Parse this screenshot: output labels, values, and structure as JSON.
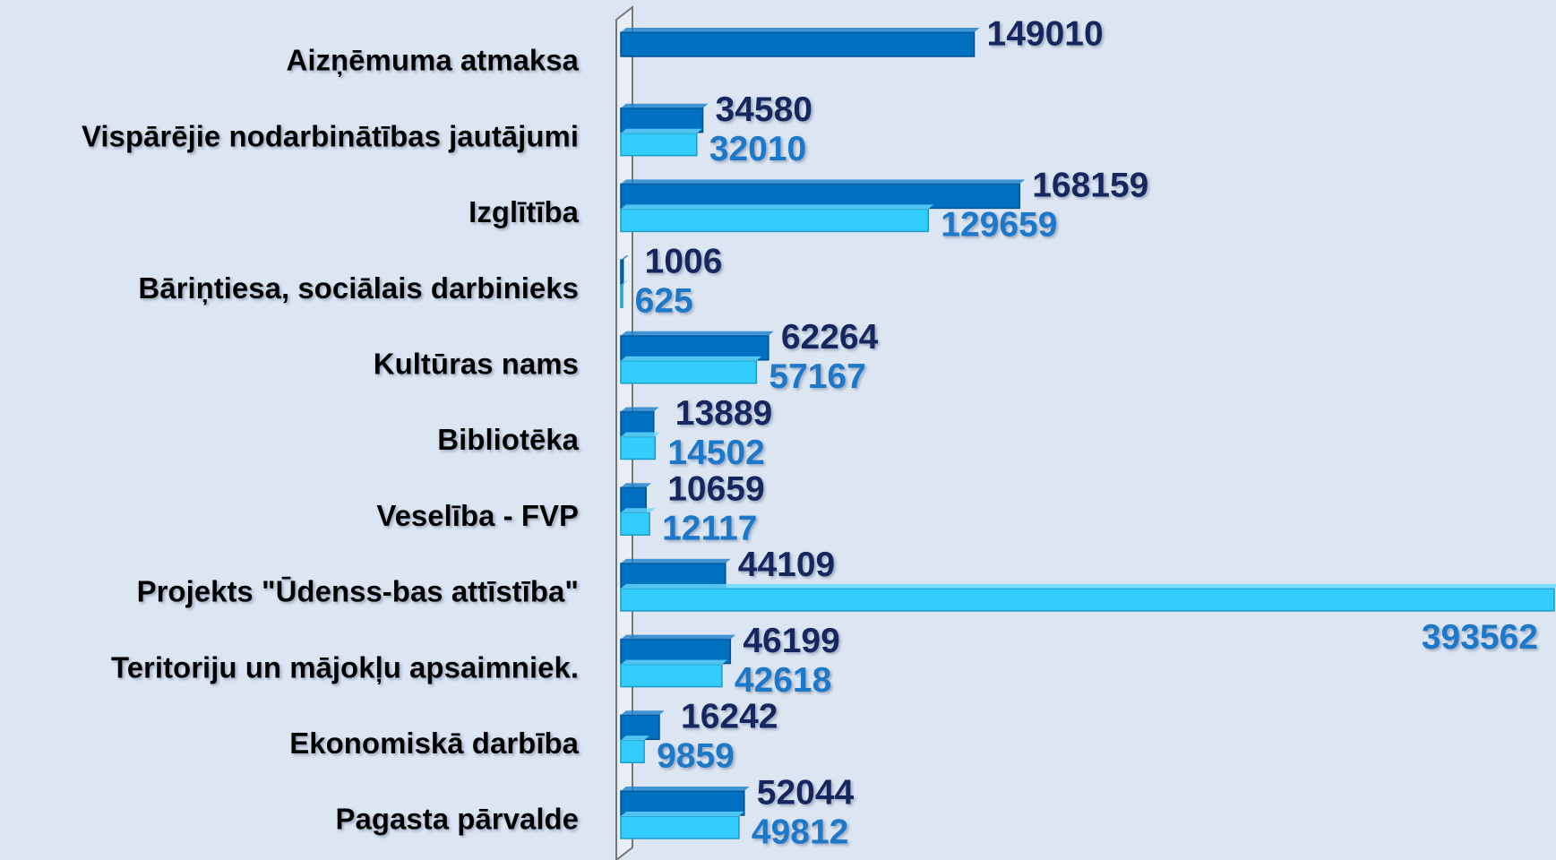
{
  "chart_data": {
    "type": "bar",
    "orientation": "horizontal",
    "categories": [
      "Aizņēmuma atmaksa",
      "Vispārējie nodarbinātības jautājumi",
      "Izglītība",
      "Bāriņtiesa, sociālais darbinieks",
      "Kultūras nams",
      "Bibliotēka",
      "Veselība - FVP",
      "Projekts \"Ūdenss-bas attīstība\"",
      "Teritoriju un mājokļu apsaimniek.",
      "Ekonomiskā darbība",
      "Pagasta pārvalde"
    ],
    "series": [
      {
        "color": "#0070c0",
        "label_color": "#17265e",
        "values": [
          149010,
          34580,
          168159,
          1006,
          62264,
          13889,
          10659,
          44109,
          46199,
          16242,
          52044
        ]
      },
      {
        "color": "#33ccff",
        "label_color": "#1f78c8",
        "values": [
          null,
          32010,
          129659,
          625,
          57167,
          14502,
          12117,
          393562,
          42618,
          9859,
          49812
        ]
      }
    ]
  }
}
